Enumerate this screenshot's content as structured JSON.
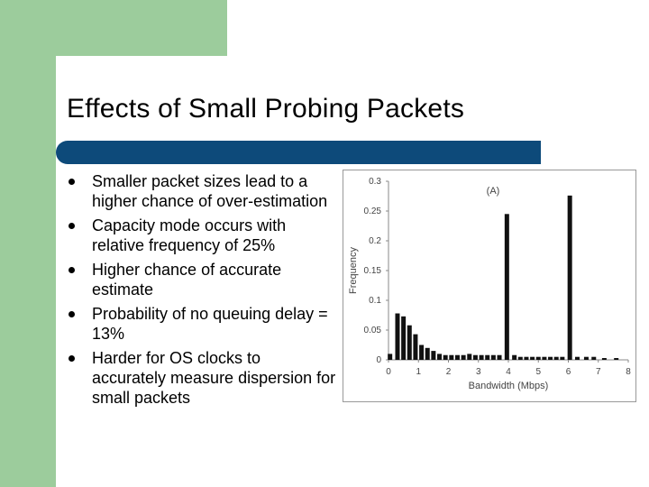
{
  "slide": {
    "title": "Effects of Small Probing Packets",
    "bullets": [
      "Smaller packet sizes lead to a higher chance of over-estimation",
      "Capacity mode occurs with relative frequency of 25%",
      "Higher chance of accurate estimate",
      "Probability of no queuing delay = 13%",
      "Harder for OS clocks to accurately measure dispersion for small packets"
    ]
  },
  "colors": {
    "green": "#9ccc9c",
    "title_bar": "#0d4a7a"
  },
  "chart_data": {
    "type": "bar",
    "annotation": "(A)",
    "xlabel": "Bandwidth (Mbps)",
    "ylabel": "Frequency",
    "xlim": [
      0,
      8
    ],
    "ylim": [
      0,
      0.3
    ],
    "xticks": [
      0,
      1,
      2,
      3,
      4,
      5,
      6,
      7,
      8
    ],
    "yticks": [
      "0",
      "0.05",
      "0.1",
      "0.15",
      "0.2",
      "0.25",
      "0.3"
    ],
    "grid": false,
    "x": [
      0.05,
      0.3,
      0.5,
      0.7,
      0.9,
      1.1,
      1.3,
      1.5,
      1.7,
      1.9,
      2.1,
      2.3,
      2.5,
      2.7,
      2.9,
      3.1,
      3.3,
      3.5,
      3.7,
      3.95,
      4.2,
      4.4,
      4.6,
      4.8,
      5.0,
      5.2,
      5.4,
      5.6,
      5.8,
      6.05,
      6.3,
      6.6,
      6.85,
      7.2,
      7.6
    ],
    "values": [
      0.01,
      0.078,
      0.073,
      0.058,
      0.043,
      0.025,
      0.02,
      0.015,
      0.01,
      0.008,
      0.008,
      0.008,
      0.008,
      0.01,
      0.008,
      0.008,
      0.008,
      0.008,
      0.008,
      0.245,
      0.008,
      0.005,
      0.005,
      0.005,
      0.005,
      0.005,
      0.005,
      0.005,
      0.005,
      0.276,
      0.005,
      0.005,
      0.005,
      0.003,
      0.003
    ]
  }
}
